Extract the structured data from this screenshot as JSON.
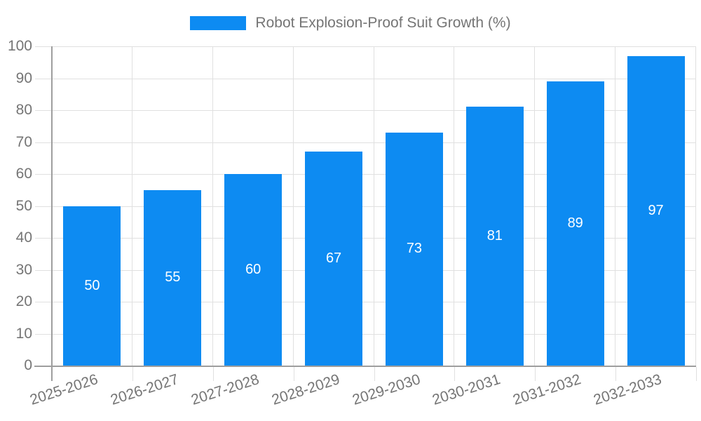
{
  "chart_data": {
    "type": "bar",
    "title": "Robot Explosion-Proof Suit Growth (%)",
    "legend_position": "top",
    "categories": [
      "2025-2026",
      "2026-2027",
      "2027-2028",
      "2028-2029",
      "2029-2030",
      "2030-2031",
      "2031-2032",
      "2032-2033"
    ],
    "values": [
      50,
      55,
      60,
      67,
      73,
      81,
      89,
      97
    ],
    "value_labels_inside_bars": true,
    "xlabel": "",
    "ylabel": "",
    "ylim": [
      0,
      100
    ],
    "yticks": [
      0,
      10,
      20,
      30,
      40,
      50,
      60,
      70,
      80,
      90,
      100
    ],
    "grid": true,
    "colors": {
      "bar": "#0d8bf2",
      "value_label": "#ffffff",
      "axis_line": "#9e9e9e",
      "gridline": "#e0e0e0",
      "tick_label": "#757575"
    }
  }
}
